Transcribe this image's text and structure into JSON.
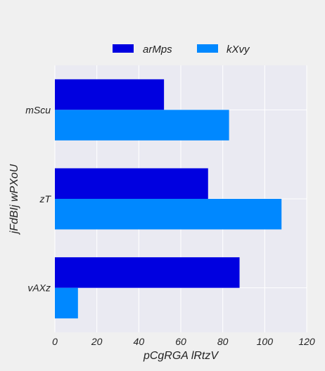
{
  "chart_data": {
    "type": "bar",
    "orientation": "horizontal",
    "categories": [
      "mScu",
      "zT",
      "vAXz"
    ],
    "series": [
      {
        "name": "arMps",
        "values": [
          52,
          73,
          88
        ],
        "color": "#0000e0"
      },
      {
        "name": "kXvy",
        "values": [
          83,
          108,
          11
        ],
        "color": "#0088ff"
      }
    ],
    "xlabel": "pCgRGA lRtzV",
    "ylabel": "jFdBIj wPXoU",
    "xlim": [
      0,
      120
    ],
    "xticks": [
      "0",
      "20",
      "40",
      "60",
      "80",
      "100",
      "120"
    ],
    "grid": true,
    "legend_position": "top-center",
    "plot_background": "#eaeaf2",
    "page_background": "#f0f0f0"
  }
}
